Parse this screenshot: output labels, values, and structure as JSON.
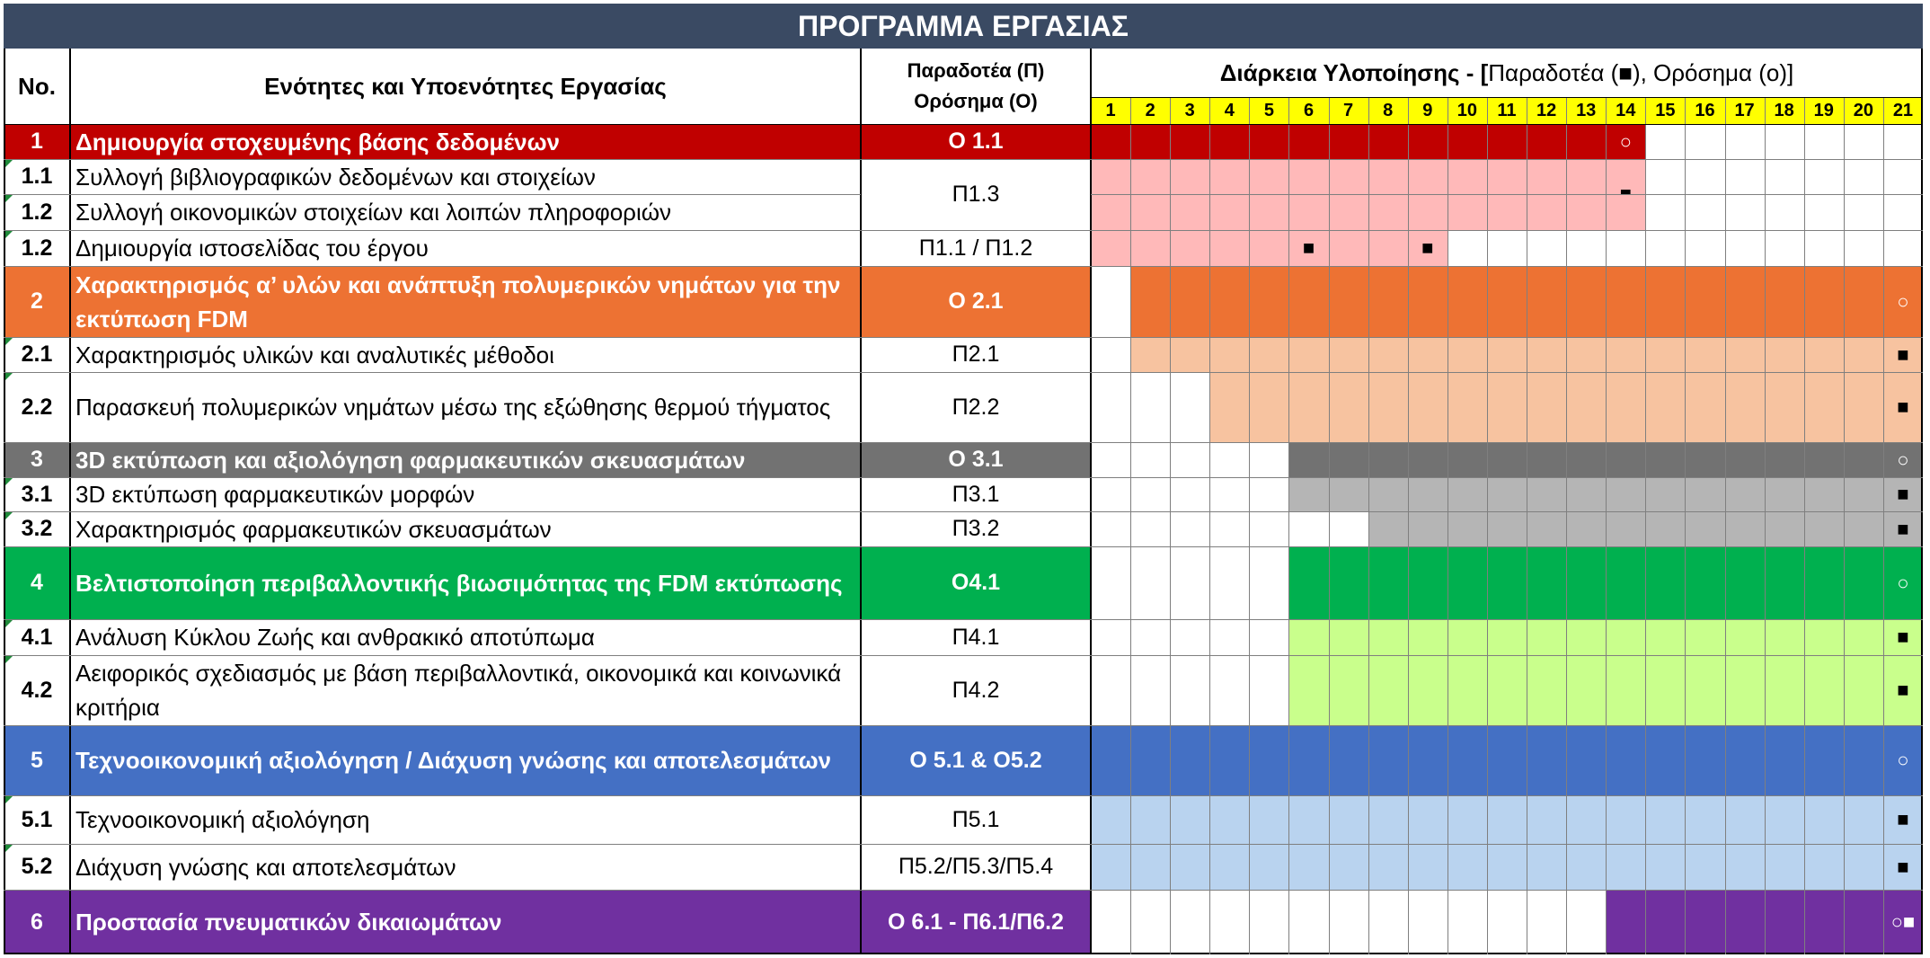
{
  "title": "ΠΡΟΓΡΑΜΜΑ ΕΡΓΑΣΙΑΣ",
  "headers": {
    "no": "No.",
    "task": "Ενότητες και Υποενότητες Εργασίας",
    "deliverable_line1": "Παραδοτέα (Π)",
    "deliverable_line2": "Ορόσημα (Ο)",
    "duration_bold": "Διάρκεια Υλοποίησης - [",
    "duration_legend": " Παραδοτέα (■), Ορόσημα (ο)]"
  },
  "months": [
    "1",
    "2",
    "3",
    "4",
    "5",
    "6",
    "7",
    "8",
    "9",
    "10",
    "11",
    "12",
    "13",
    "14",
    "15",
    "16",
    "17",
    "18",
    "19",
    "20",
    "21"
  ],
  "colors": {
    "header_bg": "#3a4a63",
    "month_bg": "#ffff00",
    "wp1_main": "#c00000",
    "wp1_sub": "#ffb9b9",
    "wp2_main": "#ed7233",
    "wp2_sub": "#f7c3a0",
    "wp3_main": "#727272",
    "wp3_sub": "#b5b5b5",
    "wp4_main": "#00b04f",
    "wp4_sub": "#c9ff8c",
    "wp5_main": "#4470c4",
    "wp5_sub": "#b9d3ef",
    "wp6_main": "#7030a0"
  },
  "rows": [
    {
      "no": "1",
      "task": "Δημιουργία στοχευμένης βάσης δεδομένων",
      "deliverable": "Ο 1.1",
      "type": "main",
      "color": "#c00000",
      "start": 1,
      "end": 14,
      "marks": [
        {
          "m": 14,
          "sym": "○"
        }
      ]
    },
    {
      "no": "1.1",
      "task": "Συλλογή βιβλιογραφικών δεδομένων και στοιχείων",
      "deliverable": "Π1.3",
      "type": "sub",
      "color": "#ffb9b9",
      "start": 1,
      "end": 14,
      "marks": [
        {
          "m": 14,
          "sym": "■"
        }
      ]
    },
    {
      "no": "1.2",
      "task": "Συλλογή οικονομικών στοιχείων και λοιπών πληροφοριών",
      "deliverable": "",
      "type": "sub",
      "color": "#ffb9b9",
      "start": 1,
      "end": 14,
      "marks": []
    },
    {
      "no": "1.2",
      "task": "Δημιουργία ιστοσελίδας του έργου",
      "deliverable": "Π1.1 / Π1.2",
      "type": "sub",
      "color": "#ffb9b9",
      "start": 1,
      "end": 9,
      "marks": [
        {
          "m": 6,
          "sym": "■"
        },
        {
          "m": 9,
          "sym": "■"
        }
      ]
    },
    {
      "no": "2",
      "task": "Χαρακτηρισμός α’ υλών και ανάπτυξη πολυμερικών νημάτων για την εκτύπωση FDM",
      "deliverable": "Ο 2.1",
      "type": "main",
      "color": "#ed7233",
      "start": 2,
      "end": 21,
      "marks": [
        {
          "m": 21,
          "sym": "○"
        }
      ]
    },
    {
      "no": "2.1",
      "task": "Χαρακτηρισμός υλικών και αναλυτικές μέθοδοι",
      "deliverable": "Π2.1",
      "type": "sub",
      "color": "#f7c3a0",
      "start": 2,
      "end": 21,
      "marks": [
        {
          "m": 21,
          "sym": "■"
        }
      ]
    },
    {
      "no": "2.2",
      "task": "Παρασκευή πολυμερικών νημάτων  μέσω της εξώθησης θερμού τήγματος",
      "deliverable": "Π2.2",
      "type": "sub",
      "color": "#f7c3a0",
      "start": 4,
      "end": 21,
      "marks": [
        {
          "m": 21,
          "sym": "■"
        }
      ]
    },
    {
      "no": "3",
      "task": "3D εκτύπωση και αξιολόγηση φαρμακευτικών σκευασμάτων",
      "deliverable": "Ο 3.1",
      "type": "main",
      "color": "#727272",
      "start": 6,
      "end": 21,
      "marks": [
        {
          "m": 21,
          "sym": "○"
        }
      ]
    },
    {
      "no": "3.1",
      "task": "3D εκτύπωση φαρμακευτικών μορφών",
      "deliverable": "Π3.1",
      "type": "sub",
      "color": "#b5b5b5",
      "start": 6,
      "end": 21,
      "marks": [
        {
          "m": 21,
          "sym": "■"
        }
      ]
    },
    {
      "no": "3.2",
      "task": "Χαρακτηρισμός φαρμακευτικών σκευασμάτων",
      "deliverable": "Π3.2",
      "type": "sub",
      "color": "#b5b5b5",
      "start": 8,
      "end": 21,
      "marks": [
        {
          "m": 21,
          "sym": "■"
        }
      ]
    },
    {
      "no": "4",
      "task": "Βελτιστοποίηση περιβαλλοντικής βιωσιμότητας της  FDM εκτύπωσης",
      "deliverable": "Ο4.1",
      "type": "main",
      "color": "#00b04f",
      "start": 6,
      "end": 21,
      "marks": [
        {
          "m": 21,
          "sym": "○"
        }
      ]
    },
    {
      "no": "4.1",
      "task": "Ανάλυση Κύκλου Ζωής και ανθρακικό αποτύπωμα",
      "deliverable": "Π4.1",
      "type": "sub",
      "color": "#c9ff8c",
      "start": 6,
      "end": 21,
      "marks": [
        {
          "m": 21,
          "sym": "■"
        }
      ]
    },
    {
      "no": "4.2",
      "task": "Αειφορικός σχεδιασμός με βάση περιβαλλοντικά, οικονομικά και κοινωνικά κριτήρια",
      "deliverable": "Π4.2",
      "type": "sub",
      "color": "#c9ff8c",
      "start": 6,
      "end": 21,
      "marks": [
        {
          "m": 21,
          "sym": "■"
        }
      ]
    },
    {
      "no": "5",
      "task": "Τεχνοοικονομική αξιολόγηση / Διάχυση γνώσης και αποτελεσμάτων",
      "deliverable": "Ο 5.1 & Ο5.2",
      "type": "main",
      "color": "#4470c4",
      "start": 1,
      "end": 21,
      "marks": [
        {
          "m": 21,
          "sym": "○"
        }
      ]
    },
    {
      "no": "5.1",
      "task": "Τεχνοοικονομική αξιολόγηση",
      "deliverable": "Π5.1",
      "type": "sub",
      "color": "#b9d3ef",
      "start": 1,
      "end": 21,
      "marks": [
        {
          "m": 21,
          "sym": "■"
        }
      ]
    },
    {
      "no": "5.2",
      "task": "Διάχυση γνώσης και αποτελεσμάτων",
      "deliverable": "Π5.2/Π5.3/Π5.4",
      "type": "sub",
      "color": "#b9d3ef",
      "start": 1,
      "end": 21,
      "marks": [
        {
          "m": 21,
          "sym": "■"
        }
      ]
    },
    {
      "no": "6",
      "task": "Προστασία πνευματικών δικαιωμάτων",
      "deliverable": "Ο 6.1 - Π6.1/Π6.2",
      "type": "main",
      "color": "#7030a0",
      "start": 14,
      "end": 21,
      "marks": [
        {
          "m": 21,
          "sym": "○■"
        }
      ]
    }
  ]
}
